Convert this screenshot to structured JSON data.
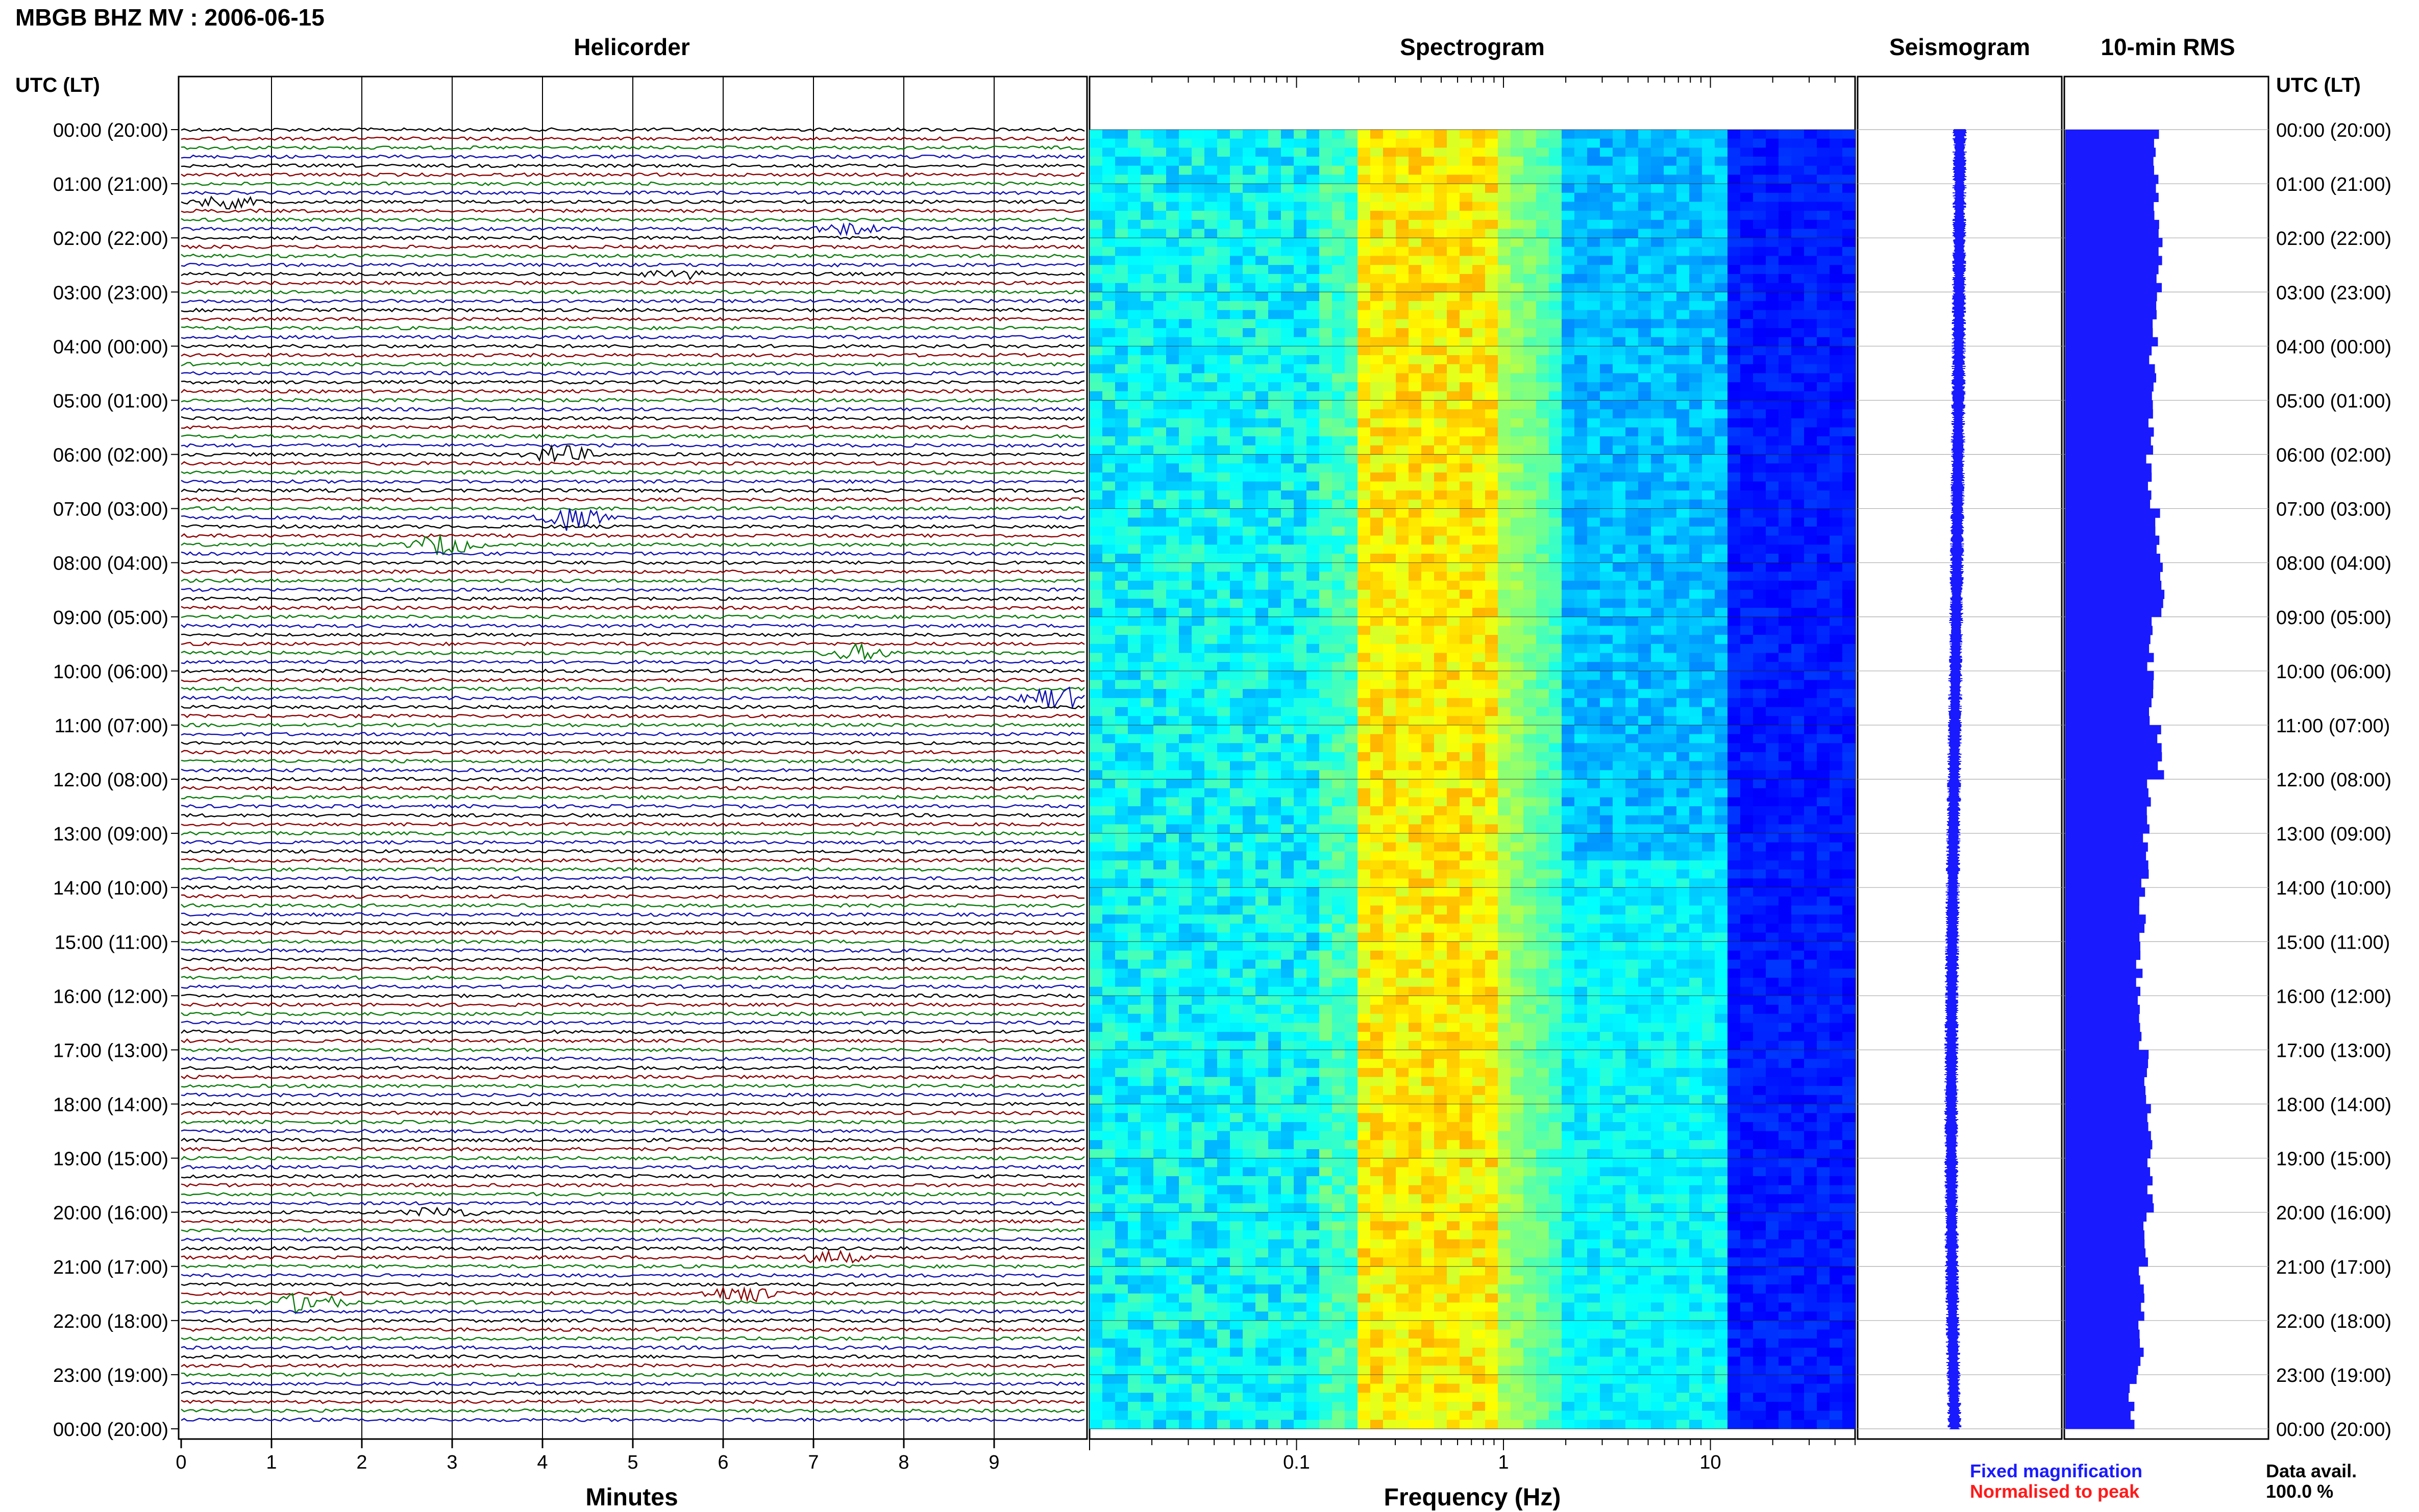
{
  "header": {
    "station_title": "MBGB BHZ MV : 2006-06-15",
    "utc_lt_label": "UTC (LT)",
    "utc_lt_label_right": "UTC (LT)"
  },
  "panels": {
    "helicorder_title": "Helicorder",
    "spectrogram_title": "Spectrogram",
    "seismogram_title": "Seismogram",
    "rms_title": "10-min RMS"
  },
  "time_labels": [
    "00:00 (20:00)",
    "01:00 (21:00)",
    "02:00 (22:00)",
    "03:00 (23:00)",
    "04:00 (00:00)",
    "05:00 (01:00)",
    "06:00 (02:00)",
    "07:00 (03:00)",
    "08:00 (04:00)",
    "09:00 (05:00)",
    "10:00 (06:00)",
    "11:00 (07:00)",
    "12:00 (08:00)",
    "13:00 (09:00)",
    "14:00 (10:00)",
    "15:00 (11:00)",
    "16:00 (12:00)",
    "17:00 (13:00)",
    "18:00 (14:00)",
    "19:00 (15:00)",
    "20:00 (16:00)",
    "21:00 (17:00)",
    "22:00 (18:00)",
    "23:00 (19:00)",
    "00:00 (20:00)"
  ],
  "legend": {
    "fixed_magnification": "Fixed magnification",
    "normalised_to_peak": "Normalised to peak",
    "data_avail_label": "Data avail.",
    "data_avail_value": "100.0 %"
  },
  "colors": {
    "trace_cycle": [
      "#000000",
      "#8b0000",
      "#0a7a0a",
      "#1010b0"
    ],
    "seismogram": "#1a1aff",
    "rms_bars": "#1a1aff",
    "fixed_magnification": "#1a1aff",
    "normalised_to_peak": "#ff1a1a",
    "spectrogram_low": "#1010a0",
    "spectrogram_high": "#e8e840"
  },
  "chart_data": [
    {
      "type": "line",
      "title": "Helicorder",
      "xlabel": "Minutes",
      "x_ticks": [
        "0",
        "1",
        "2",
        "3",
        "4",
        "5",
        "6",
        "7",
        "8",
        "9"
      ],
      "xlim": [
        0,
        10
      ],
      "row_minutes": 10,
      "rows": 144,
      "row_color_cycle": [
        "black",
        "darkred",
        "green",
        "blue"
      ],
      "events": [
        {
          "row": 8,
          "minute": 0.5,
          "amplitude": 2.0
        },
        {
          "row": 11,
          "minute": 7.4,
          "amplitude": 1.8
        },
        {
          "row": 16,
          "minute": 5.5,
          "amplitude": 1.6
        },
        {
          "row": 36,
          "minute": 4.2,
          "amplitude": 3.0
        },
        {
          "row": 43,
          "minute": 4.3,
          "amplitude": 4.0
        },
        {
          "row": 46,
          "minute": 2.9,
          "amplitude": 3.5
        },
        {
          "row": 58,
          "minute": 7.5,
          "amplitude": 2.5
        },
        {
          "row": 63,
          "minute": 9.7,
          "amplitude": 4.0
        },
        {
          "row": 120,
          "minute": 2.9,
          "amplitude": 2.0
        },
        {
          "row": 125,
          "minute": 7.2,
          "amplitude": 2.2
        },
        {
          "row": 129,
          "minute": 6.2,
          "amplitude": 3.2
        },
        {
          "row": 130,
          "minute": 1.4,
          "amplitude": 4.0
        }
      ]
    },
    {
      "type": "heatmap",
      "title": "Spectrogram",
      "xlabel": "Frequency (Hz)",
      "xscale": "log",
      "xlim": [
        0.01,
        50
      ],
      "x_tick_labels": [
        "0.1",
        "1",
        "10"
      ],
      "y": "time of day (UTC), 00:00 to 24:00",
      "colormap": "jet (blue low, yellow high)",
      "peak_band_hz": [
        0.2,
        0.9
      ]
    },
    {
      "type": "line",
      "title": "Seismogram",
      "description_series": "hourly-compressed vertical trace, fixed magnification"
    },
    {
      "type": "bar",
      "title": "10-min RMS",
      "orientation": "horizontal",
      "bins": 144,
      "relative_values_by_hour": [
        0.45,
        0.45,
        0.46,
        0.44,
        0.43,
        0.42,
        0.41,
        0.45,
        0.48,
        0.42,
        0.43,
        0.47,
        0.4,
        0.39,
        0.38,
        0.36,
        0.37,
        0.4,
        0.41,
        0.42,
        0.4,
        0.38,
        0.37,
        0.33
      ]
    }
  ]
}
